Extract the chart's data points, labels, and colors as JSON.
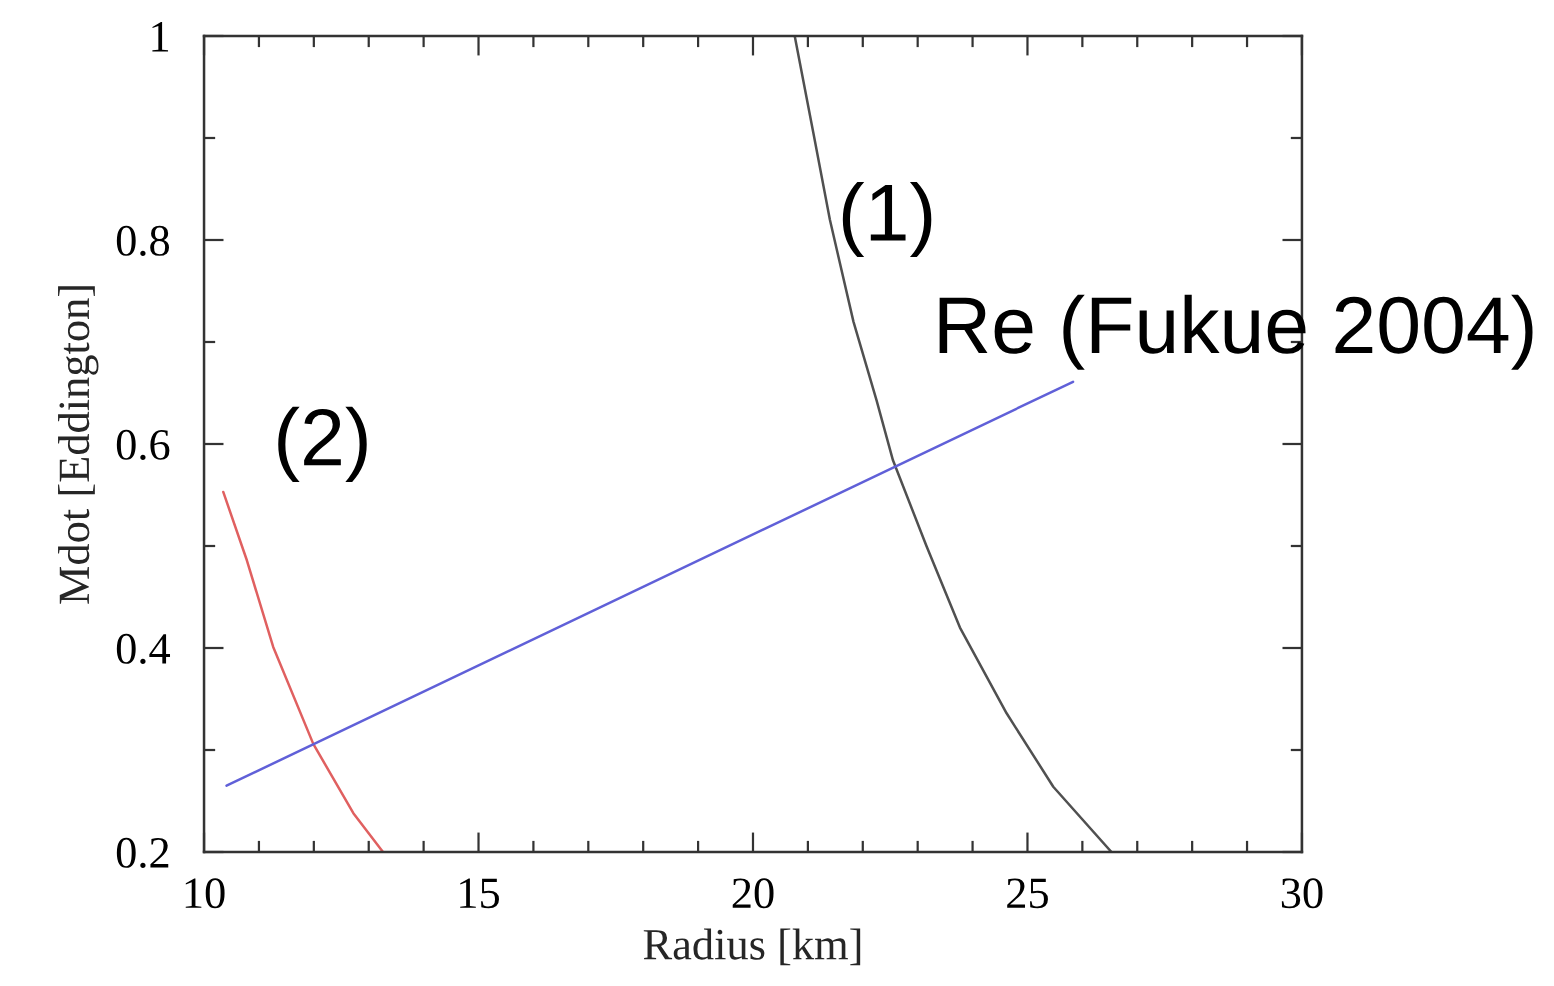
{
  "chart_data": {
    "type": "line",
    "xlabel": "Radius [km]",
    "ylabel": "Mdot [Eddington]",
    "xlim": [
      10,
      30
    ],
    "ylim": [
      0.2,
      1
    ],
    "xticks": [
      10,
      15,
      20,
      25,
      30
    ],
    "yticks": [
      0.2,
      0.4,
      0.6,
      0.8,
      1
    ],
    "line_style": "solid",
    "series": [
      {
        "name": "(1)",
        "color": "#505050",
        "x": [
          20.76,
          21.1,
          21.4,
          21.83,
          22.25,
          22.55,
          23.16,
          23.77,
          24.62,
          25.47,
          26.53
        ],
        "values": [
          1.0,
          0.905,
          0.82,
          0.72,
          0.643,
          0.584,
          0.5,
          0.42,
          0.336,
          0.264,
          0.2
        ]
      },
      {
        "name": "(2)",
        "color": "#e06060",
        "x": [
          10.35,
          10.78,
          11.26,
          11.99,
          12.72,
          13.26
        ],
        "values": [
          0.553,
          0.486,
          0.401,
          0.306,
          0.238,
          0.2
        ]
      },
      {
        "name": "Re (Fukue 2004)",
        "color": "#6060d8",
        "x": [
          10.41,
          25.83
        ],
        "values": [
          0.265,
          0.661
        ]
      }
    ]
  }
}
